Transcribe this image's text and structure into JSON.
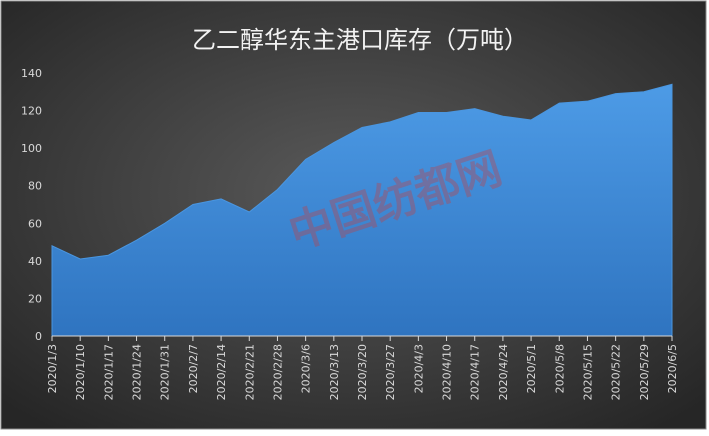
{
  "chart_data": {
    "type": "area",
    "title": "乙二醇华东主港口库存（万吨）",
    "watermark": "中国纺都网",
    "categories": [
      "2020/1/3",
      "2020/1/10",
      "2020/1/17",
      "2020/1/24",
      "2020/1/31",
      "2020/2/7",
      "2020/2/14",
      "2020/2/21",
      "2020/2/28",
      "2020/3/6",
      "2020/3/13",
      "2020/3/20",
      "2020/3/27",
      "2020/4/3",
      "2020/4/10",
      "2020/4/17",
      "2020/4/24",
      "2020/5/1",
      "2020/5/8",
      "2020/5/15",
      "2020/5/22",
      "2020/5/29",
      "2020/6/5"
    ],
    "values": [
      48,
      41,
      43,
      51,
      60,
      70,
      73,
      66,
      78,
      94,
      103,
      111,
      114,
      119,
      119,
      121,
      117,
      115,
      124,
      125,
      129,
      130,
      134
    ],
    "color": "#4a96e0",
    "ylim": [
      0,
      140
    ],
    "yticks": [
      0,
      20,
      40,
      60,
      80,
      100,
      120,
      140
    ]
  }
}
